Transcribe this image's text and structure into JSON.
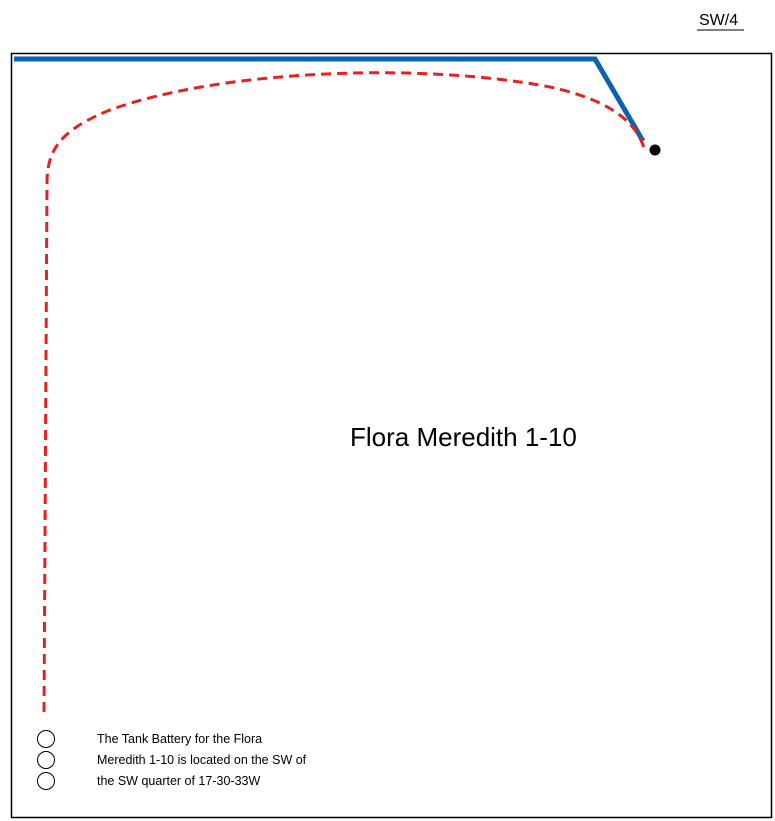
{
  "quarter_label": "SW/4",
  "well_label": "Flora Meredith 1-10",
  "note": {
    "lines": [
      "The Tank Battery for the Flora",
      "Meredith 1-10 is located on the SW of",
      "the SW quarter of 17-30-33W"
    ]
  },
  "colors": {
    "road": "#0b63ad",
    "pipeline": "#e8201f",
    "boundary": "#000000",
    "well": "#000000"
  },
  "tanks": {
    "count": 3
  },
  "icons": {
    "well": "filled-circle-well-icon",
    "tank": "open-circle-tank-icon"
  }
}
